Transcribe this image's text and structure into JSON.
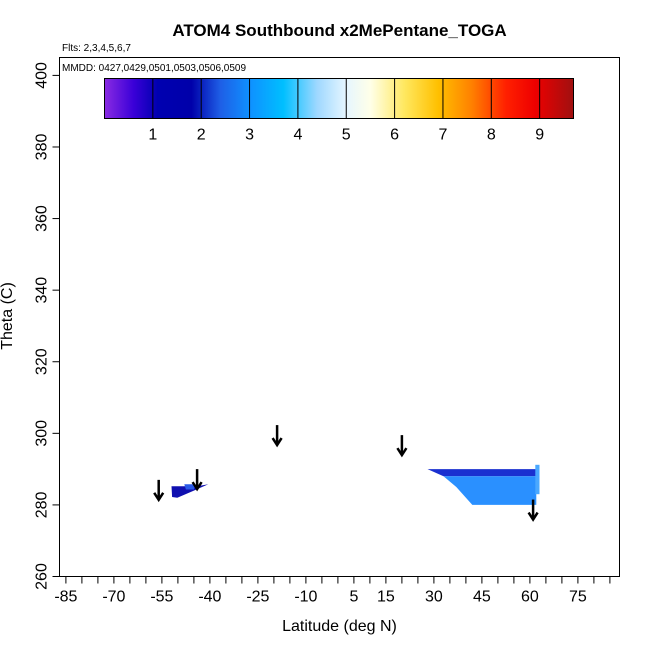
{
  "chart_data": {
    "type": "heatmap",
    "title": "ATOM4 Southbound x2MePentane_TOGA",
    "subtitle_flights": "Flts: 2,3,4,5,6,7",
    "subtitle_dates": "MMDD: 0427,0429,0501,0503,0506,0509",
    "xlabel": "Latitude (deg N)",
    "ylabel": "Theta (C)",
    "xlim": [
      -87,
      88
    ],
    "ylim": [
      260,
      405
    ],
    "x_ticks": [
      -85,
      -70,
      -55,
      -40,
      -25,
      -10,
      5,
      15,
      30,
      45,
      60,
      75
    ],
    "x_ticks_minor": [
      -80,
      -75,
      -65,
      -60,
      -50,
      -45,
      -35,
      -30,
      -20,
      -15,
      -5,
      0,
      10,
      20,
      25,
      35,
      40,
      50,
      55,
      65,
      70,
      80,
      85
    ],
    "y_ticks": [
      260,
      280,
      300,
      320,
      340,
      360,
      380,
      400
    ],
    "colorbar": {
      "range": [
        0,
        9.7
      ],
      "ticks": [
        1,
        2,
        3,
        4,
        5,
        6,
        7,
        8,
        9
      ],
      "stops": [
        {
          "v": 0.0,
          "color": "#8a2be2"
        },
        {
          "v": 0.6,
          "color": "#3a00d8"
        },
        {
          "v": 1.1,
          "color": "#0000b0"
        },
        {
          "v": 1.8,
          "color": "#0000aa"
        },
        {
          "v": 2.4,
          "color": "#1e5fe6"
        },
        {
          "v": 3.0,
          "color": "#0f90ff"
        },
        {
          "v": 3.7,
          "color": "#00bfff"
        },
        {
          "v": 4.4,
          "color": "#9fd8ff"
        },
        {
          "v": 5.0,
          "color": "#e6f6ff"
        },
        {
          "v": 5.5,
          "color": "#ffffe8"
        },
        {
          "v": 6.2,
          "color": "#ffe860"
        },
        {
          "v": 6.9,
          "color": "#ffc000"
        },
        {
          "v": 7.6,
          "color": "#ff8000"
        },
        {
          "v": 8.3,
          "color": "#ff2000"
        },
        {
          "v": 8.9,
          "color": "#ee0000"
        },
        {
          "v": 9.7,
          "color": "#a01010"
        }
      ]
    },
    "regions": [
      {
        "name": "south-patch",
        "color": "#1010b0",
        "points": [
          [
            -52,
            285.2
          ],
          [
            -48,
            285.2
          ],
          [
            -44,
            285.2
          ],
          [
            -40.5,
            285.8
          ],
          [
            -45,
            284
          ],
          [
            -50.2,
            282
          ],
          [
            -51.8,
            282.2
          ]
        ]
      },
      {
        "name": "south-patch-highlight",
        "color": "#2a5ae8",
        "points": [
          [
            -48,
            285.8
          ],
          [
            -44.5,
            285.8
          ],
          [
            -45,
            284.3
          ],
          [
            -47.5,
            284.3
          ]
        ]
      },
      {
        "name": "north-upper-band",
        "color": "#1a30d0",
        "points": [
          [
            28,
            290
          ],
          [
            63,
            290
          ],
          [
            63,
            288
          ],
          [
            33,
            288
          ]
        ]
      },
      {
        "name": "north-lower-block",
        "color": "#2a90ff",
        "points": [
          [
            33,
            288
          ],
          [
            62,
            288
          ],
          [
            62,
            280
          ],
          [
            42,
            280
          ],
          [
            37,
            285
          ]
        ]
      },
      {
        "name": "north-edge-strip",
        "color": "#4aa8ff",
        "points": [
          [
            61.7,
            291.2
          ],
          [
            63,
            291.2
          ],
          [
            63,
            283
          ],
          [
            61.7,
            283
          ]
        ]
      }
    ],
    "arrows": [
      {
        "lat": -56,
        "theta_start": 287.0
      },
      {
        "lat": -44,
        "theta_start": 290.0
      },
      {
        "lat": -19,
        "theta_start": 302.3
      },
      {
        "lat": 20,
        "theta_start": 299.5
      },
      {
        "lat": 61,
        "theta_start": 281.5
      }
    ]
  }
}
